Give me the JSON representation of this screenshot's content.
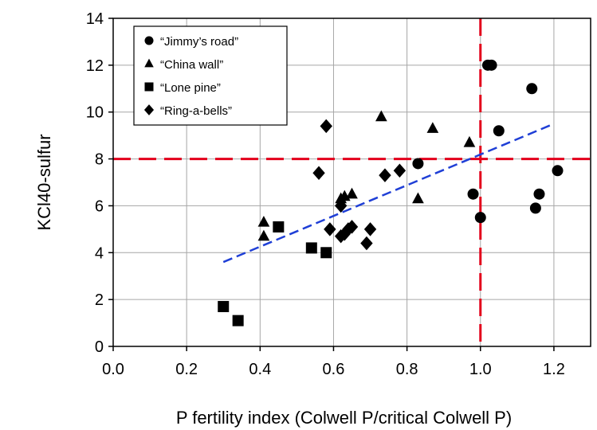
{
  "chart_data": {
    "type": "scatter",
    "xlabel": "P fertility index (Colwell P/critical Colwell P)",
    "ylabel": "KCl40-sulfur",
    "xlim": [
      0,
      1.3
    ],
    "ylim": [
      0,
      14
    ],
    "xticks": [
      "0.0",
      "0.2",
      "0.4",
      "0.6",
      "0.8",
      "1.0",
      "1.2"
    ],
    "yticks": [
      "0",
      "2",
      "4",
      "6",
      "8",
      "10",
      "12",
      "14"
    ],
    "grid": true,
    "legend_position": "top-left",
    "series": [
      {
        "name": "“Jimmy’s road”",
        "marker": "circle",
        "color": "#000000",
        "points": [
          [
            0.83,
            7.8
          ],
          [
            0.98,
            6.5
          ],
          [
            1.0,
            5.5
          ],
          [
            1.02,
            12.0
          ],
          [
            1.03,
            12.0
          ],
          [
            1.05,
            9.2
          ],
          [
            1.14,
            11.0
          ],
          [
            1.15,
            5.9
          ],
          [
            1.16,
            6.5
          ],
          [
            1.21,
            7.5
          ]
        ]
      },
      {
        "name": "“China wall”",
        "marker": "triangle",
        "color": "#000000",
        "points": [
          [
            0.41,
            5.3
          ],
          [
            0.41,
            4.7
          ],
          [
            0.62,
            6.3
          ],
          [
            0.63,
            6.4
          ],
          [
            0.65,
            6.5
          ],
          [
            0.73,
            9.8
          ],
          [
            0.83,
            6.3
          ],
          [
            0.87,
            9.3
          ],
          [
            0.97,
            8.7
          ]
        ]
      },
      {
        "name": "“Lone pine”",
        "marker": "square",
        "color": "#000000",
        "points": [
          [
            0.3,
            1.7
          ],
          [
            0.34,
            1.1
          ],
          [
            0.45,
            5.1
          ],
          [
            0.54,
            4.2
          ],
          [
            0.58,
            4.0
          ]
        ]
      },
      {
        "name": "“Ring-a-bells”",
        "marker": "diamond",
        "color": "#000000",
        "points": [
          [
            0.56,
            7.4
          ],
          [
            0.58,
            9.4
          ],
          [
            0.59,
            5.0
          ],
          [
            0.62,
            6.0
          ],
          [
            0.62,
            4.7
          ],
          [
            0.63,
            4.8
          ],
          [
            0.64,
            5.0
          ],
          [
            0.65,
            5.1
          ],
          [
            0.69,
            4.4
          ],
          [
            0.7,
            5.0
          ],
          [
            0.74,
            7.3
          ],
          [
            0.78,
            7.5
          ]
        ]
      }
    ],
    "regression_line": {
      "x": [
        0.3,
        1.2
      ],
      "y": [
        3.6,
        9.5
      ],
      "color": "#1f3fd6",
      "style": "dashed"
    },
    "reference_lines": {
      "horizontal": {
        "y": 8,
        "color": "#e3001b",
        "style": "dashed"
      },
      "vertical": {
        "x": 1.0,
        "color": "#e3001b",
        "style": "dashed"
      }
    }
  }
}
